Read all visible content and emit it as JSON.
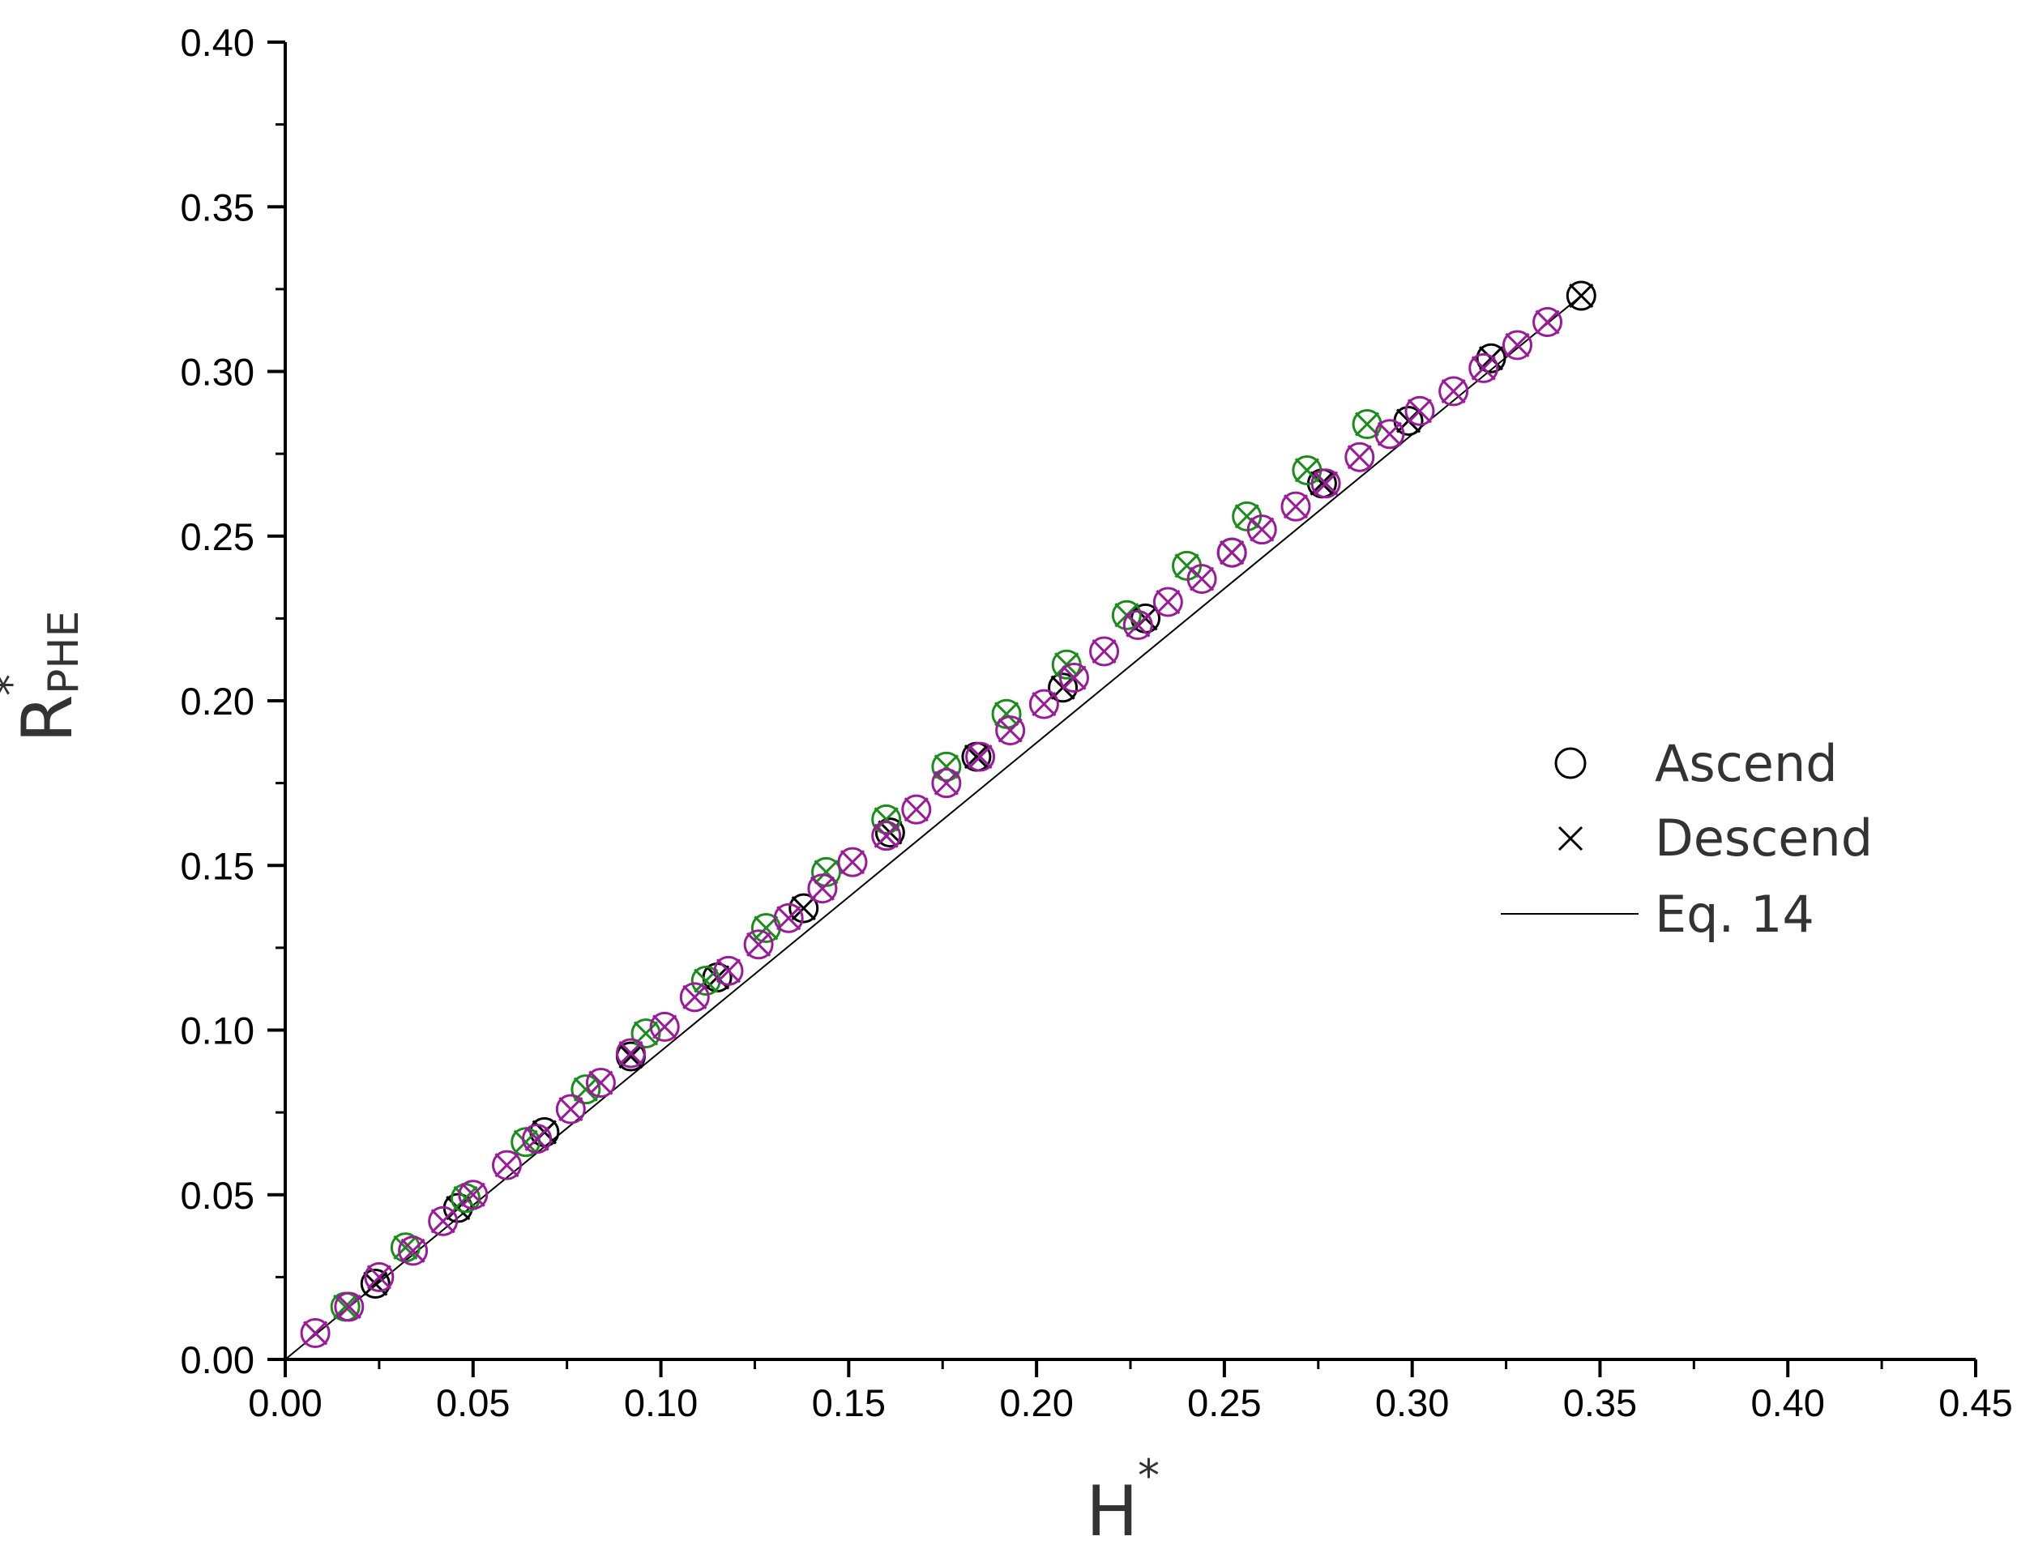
{
  "chart_data": {
    "type": "scatter",
    "x_axis": {
      "label_base": "H",
      "label_sup": "*",
      "range": [
        0,
        0.45
      ],
      "ticks": [
        "0.00",
        "0.05",
        "0.10",
        "0.15",
        "0.20",
        "0.25",
        "0.30",
        "0.35",
        "0.40",
        "0.45"
      ]
    },
    "y_axis": {
      "label_base": "R",
      "label_sup": "*",
      "label_sub": "PHE",
      "range": [
        0,
        0.4
      ],
      "ticks": [
        "0.00",
        "0.05",
        "0.10",
        "0.15",
        "0.20",
        "0.25",
        "0.30",
        "0.35",
        "0.40"
      ]
    },
    "grid": false,
    "legend_position": "right",
    "legend": [
      {
        "label": "Ascend",
        "marker": "circle"
      },
      {
        "label": "Descend",
        "marker": "cross"
      },
      {
        "label": "Eq. 14",
        "marker": "line"
      }
    ],
    "line": {
      "name": "Eq. 14",
      "x": [
        0.0,
        0.345
      ],
      "y": [
        0.0,
        0.323
      ],
      "color": "#000000"
    },
    "series": [
      {
        "color": "#000000",
        "x": [
          0.024,
          0.046,
          0.069,
          0.092,
          0.115,
          0.138,
          0.161,
          0.184,
          0.207,
          0.229,
          0.252,
          0.276,
          0.299,
          0.321,
          0.345
        ],
        "y": [
          0.023,
          0.046,
          0.069,
          0.092,
          0.116,
          0.137,
          0.16,
          0.183,
          0.204,
          0.225,
          0.245,
          0.266,
          0.285,
          0.304,
          0.323
        ]
      },
      {
        "color": "#1a8c1a",
        "x": [
          0.016,
          0.032,
          0.048,
          0.064,
          0.08,
          0.096,
          0.112,
          0.128,
          0.144,
          0.16,
          0.176,
          0.192,
          0.208,
          0.224,
          0.24,
          0.256,
          0.272,
          0.288
        ],
        "y": [
          0.016,
          0.034,
          0.049,
          0.066,
          0.082,
          0.099,
          0.115,
          0.131,
          0.148,
          0.164,
          0.18,
          0.196,
          0.211,
          0.226,
          0.241,
          0.256,
          0.27,
          0.284
        ]
      },
      {
        "color": "#9a1a9a",
        "x": [
          0.008,
          0.017,
          0.025,
          0.034,
          0.042,
          0.05,
          0.059,
          0.067,
          0.076,
          0.084,
          0.092,
          0.101,
          0.109,
          0.118,
          0.126,
          0.134,
          0.143,
          0.151,
          0.16,
          0.168,
          0.176,
          0.185,
          0.193,
          0.202,
          0.21,
          0.218,
          0.227,
          0.235,
          0.244,
          0.252,
          0.26,
          0.269,
          0.277,
          0.286,
          0.294,
          0.302,
          0.311,
          0.319,
          0.328,
          0.336
        ],
        "y": [
          0.008,
          0.016,
          0.025,
          0.033,
          0.042,
          0.05,
          0.059,
          0.067,
          0.076,
          0.084,
          0.093,
          0.101,
          0.11,
          0.118,
          0.126,
          0.134,
          0.143,
          0.151,
          0.159,
          0.167,
          0.175,
          0.183,
          0.191,
          0.199,
          0.207,
          0.215,
          0.223,
          0.23,
          0.237,
          0.245,
          0.252,
          0.259,
          0.266,
          0.274,
          0.281,
          0.288,
          0.294,
          0.301,
          0.308,
          0.315
        ]
      }
    ]
  }
}
